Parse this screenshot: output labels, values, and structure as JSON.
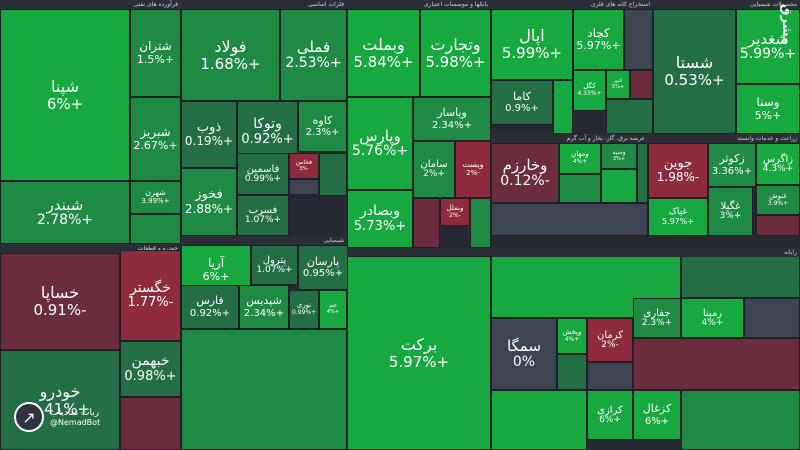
{
  "chart_data": {
    "type": "treemap",
    "sectors": [
      {
        "name": "فرآورده های نفتی",
        "tickers": [
          {
            "name": "شپنا",
            "change": "+6%",
            "v": 6
          },
          {
            "name": "شتران",
            "change": "+1.5%",
            "v": 1.5
          },
          {
            "name": "شبریز",
            "change": "+2.67%",
            "v": 2.67
          },
          {
            "name": "شبندر",
            "change": "+2.78%",
            "v": 2.78
          },
          {
            "name": "شهرن",
            "change": "+3.99%",
            "v": 3.99
          }
        ]
      },
      {
        "name": "فلزات اساسی",
        "tickers": [
          {
            "name": "فولاد",
            "change": "+1.68%",
            "v": 1.68
          },
          {
            "name": "فملی",
            "change": "+2.53%",
            "v": 2.53
          },
          {
            "name": "ذوب",
            "change": "+0.19%",
            "v": 0.19
          },
          {
            "name": "وتوکا",
            "change": "+0.92%",
            "v": 0.92
          },
          {
            "name": "کاوه",
            "change": "+2.3%",
            "v": 2.3
          },
          {
            "name": "فخوز",
            "change": "+2.88%",
            "v": 2.88
          },
          {
            "name": "فاسمین",
            "change": "+0.99%",
            "v": 0.99
          },
          {
            "name": "فخاس",
            "change": "-3%",
            "v": -3
          },
          {
            "name": "فسرب",
            "change": "+1.07%",
            "v": 1.07
          }
        ]
      },
      {
        "name": "بانکها و موسسات اعتباری",
        "tickers": [
          {
            "name": "وبملت",
            "change": "+5.84%",
            "v": 5.84
          },
          {
            "name": "وتجارت",
            "change": "+5.98%",
            "v": 5.98
          },
          {
            "name": "وپارس",
            "change": "+5.76%",
            "v": 5.76
          },
          {
            "name": "وبصادر",
            "change": "+5.73%",
            "v": 5.73
          },
          {
            "name": "وپاسار",
            "change": "+2.34%",
            "v": 2.34
          },
          {
            "name": "سامان",
            "change": "+2%",
            "v": 2
          },
          {
            "name": "وبست",
            "change": "-2%",
            "v": -2
          },
          {
            "name": "وبملل",
            "change": "-2%",
            "v": -2
          }
        ]
      },
      {
        "name": "استخراج کانه های فلزی",
        "tickers": [
          {
            "name": "اپال",
            "change": "+5.99%",
            "v": 5.99
          },
          {
            "name": "کچاد",
            "change": "+5.97%",
            "v": 5.97
          },
          {
            "name": "کاما",
            "change": "+0.9%",
            "v": 0.9
          },
          {
            "name": "کگل",
            "change": "+4.33%",
            "v": 4.33
          },
          {
            "name": "کنور",
            "change": "+5%",
            "v": 5
          }
        ]
      },
      {
        "name": "محصولات شیمیایی",
        "tickers": [
          {
            "name": "شستا",
            "change": "+0.53%",
            "v": 0.53
          },
          {
            "name": "شغدیر",
            "change": "+5.99%",
            "v": 5.99
          },
          {
            "name": "وسنا",
            "change": "+5%",
            "v": 5
          }
        ]
      },
      {
        "name": "عرضه برق، گاز، بخار و آب گرم",
        "tickers": [
          {
            "name": "وخارزم",
            "change": "-0.12%",
            "v": -0.12
          },
          {
            "name": "ومهان",
            "change": "+4%",
            "v": 4
          },
          {
            "name": "وسپه",
            "change": "+3%",
            "v": 3
          }
        ]
      },
      {
        "name": "زراعت و خدمات وابسته",
        "tickers": [
          {
            "name": "جوین",
            "change": "-1.98%",
            "v": -1.98
          },
          {
            "name": "زکوثر",
            "change": "+3.36%",
            "v": 3.36
          },
          {
            "name": "زاگرس",
            "change": "+4.3%",
            "v": 4.3
          },
          {
            "name": "غگیلا",
            "change": "+3%",
            "v": 3
          },
          {
            "name": "غنوش",
            "change": "+3.9%",
            "v": 3.9
          },
          {
            "name": "غپاک",
            "change": "+5.97%",
            "v": 5.97
          }
        ]
      },
      {
        "name": "خودرو و قطعات",
        "tickers": [
          {
            "name": "خساپا",
            "change": "-0.91%",
            "v": -0.91
          },
          {
            "name": "خگستر",
            "change": "-1.77%",
            "v": -1.77
          },
          {
            "name": "خبهمن",
            "change": "+0.98%",
            "v": 0.98
          },
          {
            "name": "خودرو",
            "change": "+0.41%",
            "v": 0.41
          }
        ]
      },
      {
        "name": "شیمیایی",
        "tickers": [
          {
            "name": "آریا",
            "change": "+6%",
            "v": 6
          },
          {
            "name": "پترول",
            "change": "+1.07%",
            "v": 1.07
          },
          {
            "name": "پارسان",
            "change": "+0.95%",
            "v": 0.95
          },
          {
            "name": "فارس",
            "change": "+0.92%",
            "v": 0.92
          },
          {
            "name": "شپدیس",
            "change": "+2.34%",
            "v": 2.34
          },
          {
            "name": "نوری",
            "change": "+0.99%",
            "v": 0.99
          },
          {
            "name": "جم",
            "change": "+4%",
            "v": 4
          }
        ]
      },
      {
        "name": "رایانه",
        "tickers": [
          {
            "name": "برکت",
            "change": "+5.97%",
            "v": 5.97
          },
          {
            "name": "سمگا",
            "change": "0%",
            "v": 0
          },
          {
            "name": "وپخش",
            "change": "+4%",
            "v": 4
          },
          {
            "name": "کرمان",
            "change": "-2%",
            "v": -2
          },
          {
            "name": "رمپنا",
            "change": "+4%",
            "v": 4
          },
          {
            "name": "جفاری",
            "change": "+2.3%",
            "v": 2.3
          },
          {
            "name": "کرازی",
            "change": "+6%",
            "v": 6
          },
          {
            "name": "کزغال",
            "change": "+6%",
            "v": 6
          }
        ]
      }
    ]
  },
  "watermark": "مشرق",
  "watermark_site": "mashreghnews.ir",
  "brand": {
    "line1": "ربات نمادیاب",
    "line2": "@NemadBot"
  },
  "colors": {
    "up_strong": "#17a83f",
    "up_mid": "#1e8a43",
    "up_weak": "#246e45",
    "flat": "#3f4452",
    "down_weak": "#6b2d3e",
    "down_strong": "#8e2b3d"
  }
}
